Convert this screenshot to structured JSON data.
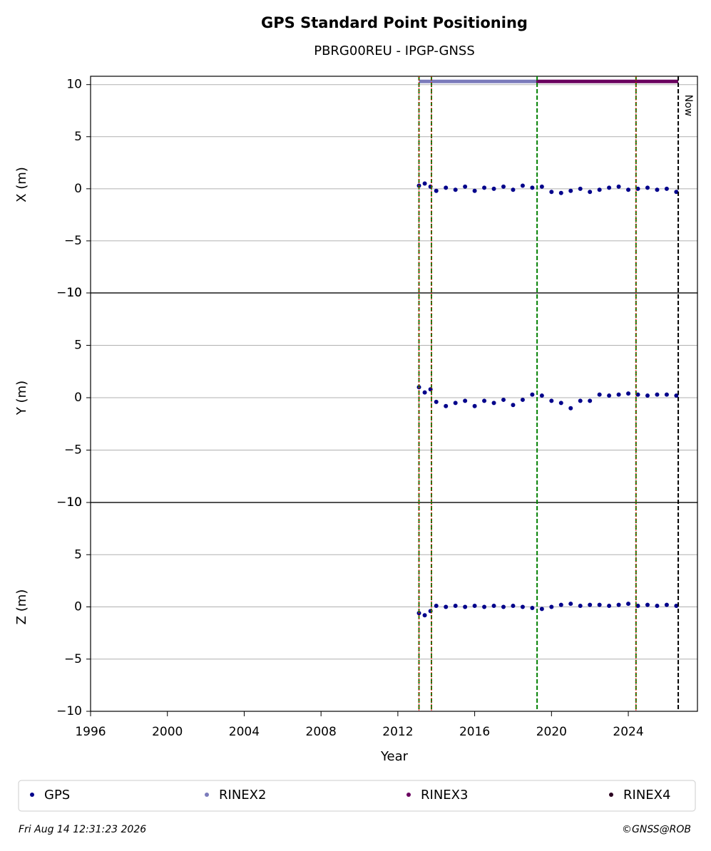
{
  "chart_data": {
    "type": "scatter",
    "title": "GPS Standard Point Positioning",
    "subtitle": "PBRG00REU - IPGP-GNSS",
    "xlabel": "Year",
    "xlim": [
      1996,
      2027.6
    ],
    "xticks": [
      1996,
      2000,
      2004,
      2008,
      2012,
      2016,
      2020,
      2024
    ],
    "series": [
      {
        "name": "GPS",
        "color": "#00008b"
      },
      {
        "name": "RINEX2",
        "color": "#7b7bbb"
      },
      {
        "name": "RINEX3",
        "color": "#6a005f"
      },
      {
        "name": "RINEX4",
        "color": "#2a0020"
      }
    ],
    "coverage": [
      {
        "series": 1,
        "start": 2013.1,
        "end": 2019.2,
        "y": 10.3
      },
      {
        "series": 2,
        "start": 2019.2,
        "end": 2026.6,
        "y": 10.3
      }
    ],
    "event_lines": [
      2013.1,
      2013.75,
      2019.25,
      2024.4
    ],
    "receiver_changes": [
      2013.1,
      2013.75,
      2024.4
    ],
    "now": {
      "x": 2026.6,
      "label": "Now"
    },
    "grid": true,
    "x": [
      2013.1,
      2013.4,
      2013.7,
      2014.0,
      2014.5,
      2015,
      2015.5,
      2016,
      2016.5,
      2017,
      2017.5,
      2018,
      2018.5,
      2019,
      2019.5,
      2020,
      2020.5,
      2021,
      2021.5,
      2022,
      2022.5,
      2023,
      2023.5,
      2024,
      2024.5,
      2025,
      2025.5,
      2026,
      2026.5
    ],
    "panels": [
      {
        "ylabel": "X (m)",
        "ylim": [
          -10,
          10.8
        ],
        "yticks": [
          {
            "value": -10,
            "label": "−10"
          },
          {
            "value": -5,
            "label": "−5"
          },
          0,
          5,
          10
        ],
        "values": [
          0.3,
          0.5,
          0.2,
          -0.2,
          0.1,
          -0.1,
          0.2,
          -0.2,
          0.1,
          0.0,
          0.2,
          -0.1,
          0.3,
          0.1,
          0.2,
          -0.3,
          -0.4,
          -0.2,
          0.0,
          -0.3,
          -0.1,
          0.1,
          0.2,
          -0.1,
          0.0,
          0.1,
          -0.1,
          0.0,
          -0.3
        ]
      },
      {
        "ylabel": "Y (m)",
        "ylim": [
          -10,
          10
        ],
        "yticks": [
          {
            "value": -10,
            "label": "−10"
          },
          {
            "value": -5,
            "label": "−5"
          },
          0,
          5,
          10
        ],
        "values": [
          1.0,
          0.5,
          0.8,
          -0.4,
          -0.8,
          -0.5,
          -0.3,
          -0.8,
          -0.3,
          -0.5,
          -0.2,
          -0.7,
          -0.2,
          0.3,
          0.2,
          -0.3,
          -0.5,
          -1.0,
          -0.3,
          -0.3,
          0.3,
          0.2,
          0.3,
          0.4,
          0.3,
          0.2,
          0.3,
          0.3,
          0.2
        ]
      },
      {
        "ylabel": "Z (m)",
        "ylim": [
          -10,
          10
        ],
        "yticks": [
          {
            "value": -10,
            "label": "−10"
          },
          {
            "value": -5,
            "label": "−5"
          },
          0,
          5,
          10
        ],
        "values": [
          -0.6,
          -0.8,
          -0.4,
          0.1,
          0.0,
          0.1,
          0.0,
          0.1,
          0.0,
          0.1,
          0.0,
          0.1,
          0.0,
          -0.1,
          -0.2,
          0.0,
          0.2,
          0.3,
          0.1,
          0.2,
          0.2,
          0.1,
          0.2,
          0.3,
          0.1,
          0.2,
          0.1,
          0.2,
          0.1
        ]
      }
    ]
  },
  "footer": {
    "timestamp": "Fri Aug 14 12:31:23 2026",
    "credit": "©GNSS@ROB"
  }
}
